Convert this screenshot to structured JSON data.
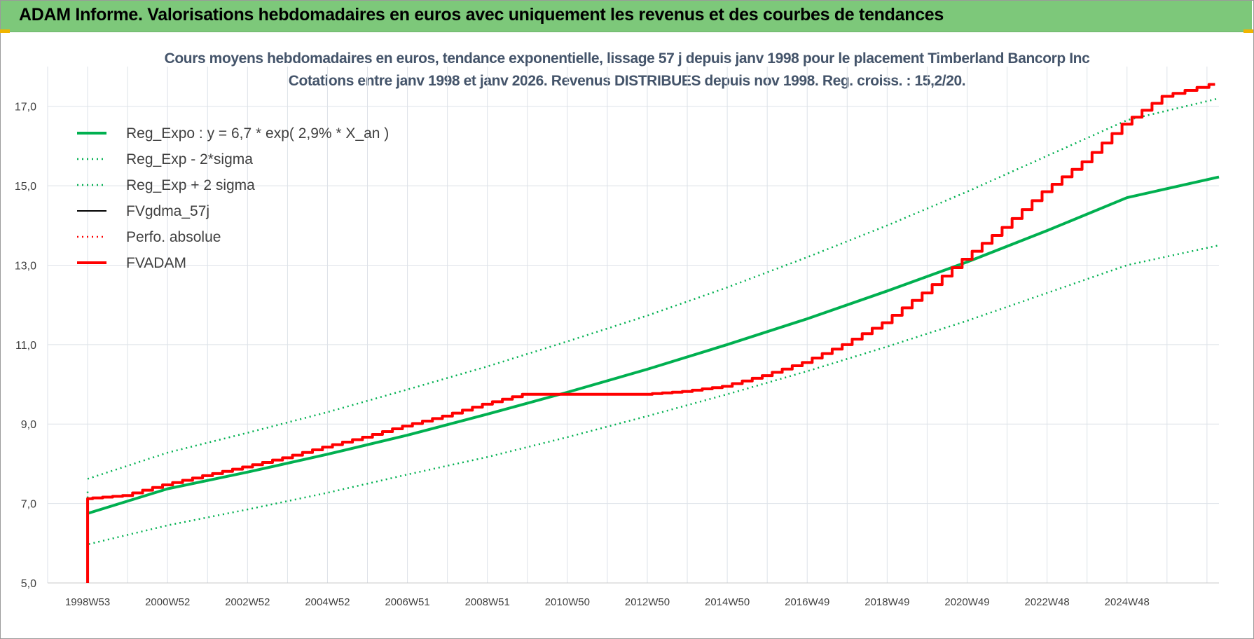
{
  "banner": {
    "title": "ADAM Informe. Valorisations hebdomadaires en euros avec uniquement les revenus et des courbes de tendances",
    "color": "#7dc87a"
  },
  "chart_data": {
    "type": "line",
    "title": "Cours moyens hebdomadaires en euros, tendance exponentielle, lissage 57 j depuis janv 1998 pour le placement Timberland Bancorp Inc",
    "subtitle": "Cotations entre janv 1998 et janv 2026. Revenus DISTRIBUES depuis nov 1998.  Reg. croiss. : 15,2/20.",
    "xlabel": "",
    "ylabel": "",
    "ylim": [
      5.0,
      18.0
    ],
    "xlim": [
      1997.0,
      2026.3
    ],
    "y_ticks": [
      "5,0",
      "7,0",
      "9,0",
      "11,0",
      "13,0",
      "15,0",
      "17,0"
    ],
    "y_tick_values": [
      5,
      7,
      9,
      11,
      13,
      15,
      17
    ],
    "x_tick_labels": [
      "1998W53",
      "2000W52",
      "2002W52",
      "2004W52",
      "2006W51",
      "2008W51",
      "2010W50",
      "2012W50",
      "2014W50",
      "2016W49",
      "2018W49",
      "2020W49",
      "2022W48",
      "2024W48"
    ],
    "x_tick_values": [
      1998.0,
      2000.0,
      2002.0,
      2004.0,
      2006.0,
      2008.0,
      2010.0,
      2012.0,
      2014.0,
      2016.0,
      2018.0,
      2020.0,
      2022.0,
      2024.0
    ],
    "grid": true,
    "legend_position": "top-left",
    "series": [
      {
        "name": "Reg_Expo : y = 6,7 * exp( 2,9% *  X_an )",
        "color": "#00b050",
        "style": "solid-thick",
        "x": [
          1998.0,
          2000.0,
          2002.0,
          2004.0,
          2006.0,
          2008.0,
          2010.0,
          2012.0,
          2014.0,
          2016.0,
          2018.0,
          2020.0,
          2022.0,
          2024.0,
          2026.3
        ],
        "values": [
          6.75,
          7.37,
          7.79,
          8.24,
          8.72,
          9.25,
          9.8,
          10.38,
          11.0,
          11.65,
          12.35,
          13.08,
          13.87,
          14.7,
          15.22
        ]
      },
      {
        "name": "Reg_Exp - 2*sigma",
        "color": "#00b050",
        "style": "dotted",
        "x": [
          1998.0,
          1998.0,
          2000.0,
          2002.0,
          2004.0,
          2006.0,
          2008.0,
          2010.0,
          2012.0,
          2014.0,
          2016.0,
          2018.0,
          2020.0,
          2022.0,
          2024.0,
          2026.3
        ],
        "values": [
          7.3,
          5.97,
          6.45,
          6.85,
          7.27,
          7.73,
          8.17,
          8.67,
          9.2,
          9.75,
          10.33,
          10.95,
          11.6,
          12.3,
          13.0,
          13.5
        ]
      },
      {
        "name": "Reg_Exp + 2 sigma",
        "color": "#00b050",
        "style": "dotted",
        "x": [
          1998.0,
          2000.0,
          2002.0,
          2004.0,
          2006.0,
          2008.0,
          2010.0,
          2012.0,
          2014.0,
          2016.0,
          2018.0,
          2020.0,
          2022.0,
          2024.0,
          2026.3
        ],
        "values": [
          7.62,
          8.28,
          8.78,
          9.3,
          9.87,
          10.45,
          11.08,
          11.73,
          12.44,
          13.2,
          14.0,
          14.85,
          15.75,
          16.65,
          17.2
        ]
      },
      {
        "name": "FVgdma_57j",
        "color": "#000000",
        "style": "solid",
        "x": [
          1998.0,
          1998.0,
          1999.0,
          2000.0,
          2001.0,
          2002.0,
          2003.0,
          2004.0,
          2005.0,
          2006.0,
          2007.0,
          2008.0,
          2009.0,
          2010.0,
          2011.0,
          2012.0,
          2013.0,
          2014.0,
          2015.0,
          2016.0,
          2017.0,
          2018.0,
          2019.0,
          2020.0,
          2021.0,
          2022.0,
          2023.0,
          2024.0,
          2025.0,
          2026.2
        ],
        "values": [
          5.0,
          7.12,
          7.2,
          7.47,
          7.7,
          7.92,
          8.15,
          8.42,
          8.67,
          8.95,
          9.2,
          9.5,
          9.75,
          9.75,
          9.75,
          9.75,
          9.82,
          9.95,
          10.22,
          10.55,
          11.0,
          11.55,
          12.3,
          13.15,
          13.95,
          14.85,
          15.6,
          16.55,
          17.25,
          17.55
        ]
      },
      {
        "name": "Perfo. absolue",
        "color": "#ff0000",
        "style": "dotted",
        "x": [],
        "values": []
      },
      {
        "name": "FVADAM",
        "color": "#ff0000",
        "style": "solid-thick",
        "x": [
          1998.0,
          1998.0,
          1999.0,
          2000.0,
          2001.0,
          2002.0,
          2003.0,
          2004.0,
          2005.0,
          2006.0,
          2007.0,
          2008.0,
          2009.0,
          2010.0,
          2011.0,
          2012.0,
          2013.0,
          2014.0,
          2015.0,
          2016.0,
          2017.0,
          2018.0,
          2019.0,
          2020.0,
          2021.0,
          2022.0,
          2023.0,
          2024.0,
          2025.0,
          2026.2
        ],
        "values": [
          5.0,
          7.12,
          7.2,
          7.47,
          7.7,
          7.92,
          8.15,
          8.42,
          8.67,
          8.95,
          9.2,
          9.5,
          9.75,
          9.75,
          9.75,
          9.75,
          9.82,
          9.95,
          10.22,
          10.55,
          11.0,
          11.55,
          12.3,
          13.15,
          13.95,
          14.85,
          15.6,
          16.55,
          17.25,
          17.55
        ]
      }
    ]
  }
}
